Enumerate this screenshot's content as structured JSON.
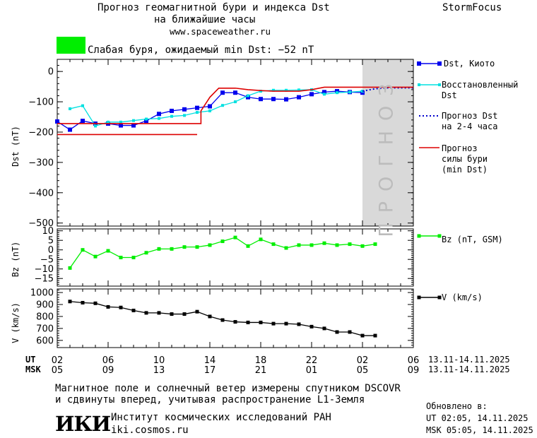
{
  "header": {
    "title_line1": "Прогноз геомагнитной бури и индекса Dst",
    "title_line2": "на ближайшие часы",
    "site": "www.spaceweather.ru",
    "brand": "StormFocus",
    "status_color": "#00ee00",
    "status_text": "Слабая буря, ожидаемый min Dst: −52 nT"
  },
  "forecast_label": "ПРОГНОЗ",
  "legend": {
    "dst_kyoto": "Dst, Киото",
    "restored_1": "Восстановленный",
    "restored_2": "Dst",
    "pred_1": "Прогноз Dst",
    "pred_2": "на 2-4 часа",
    "storm_1": "Прогноз",
    "storm_2": "силы бури",
    "storm_3": "(min Dst)",
    "bz": "Bz (nT, GSM)",
    "v": "V (km/s)"
  },
  "axes": {
    "dst_ylabel": "Dst (nT)",
    "bz_ylabel": "Bz (nT)",
    "v_ylabel": "V (km/s)",
    "ut_label": "UT",
    "msk_label": "MSK",
    "ut_ticks": [
      "02",
      "06",
      "10",
      "14",
      "18",
      "22",
      "02",
      "06"
    ],
    "msk_ticks": [
      "05",
      "09",
      "13",
      "17",
      "21",
      "01",
      "05",
      "09"
    ],
    "date_range_ut": "13.11-14.11.2025",
    "date_range_msk": "13.11-14.11.2025",
    "dst_ticks": [
      "0",
      "−100",
      "−200",
      "−300",
      "−400",
      "−500"
    ],
    "bz_ticks": [
      "10",
      "5",
      "0",
      "−5",
      "−10",
      "−15"
    ],
    "v_ticks": [
      "1000",
      "900",
      "800",
      "700",
      "600"
    ]
  },
  "footer": {
    "line1": "Магнитное поле и солнечный ветер измерены спутником DSCOVR",
    "line2": "и сдвинуты вперед, учитывая распространение L1-Земля",
    "updated_label": "Обновлено в:",
    "updated_ut": "UT  02:05, 14.11.2025",
    "updated_msk": "MSK 05:05, 14.11.2025",
    "logo_text": "ИКИ",
    "institute": "Институт космических исследований РАН",
    "institute_site": "iki.cosmos.ru"
  },
  "chart_data": [
    {
      "type": "line",
      "title": "Прогноз геомагнитной бури и индекса Dst",
      "ylabel": "Dst (nT)",
      "xlim": [
        2,
        30
      ],
      "ylim": [
        -510,
        40
      ],
      "forecast_start": 26,
      "series": [
        {
          "name": "Dst, Киото",
          "color": "#0000ee",
          "x": [
            2,
            3,
            4,
            5,
            6,
            7,
            8,
            9,
            10,
            11,
            12,
            13,
            14,
            15,
            16,
            17,
            18,
            19,
            20,
            21,
            22,
            23,
            24,
            25,
            26
          ],
          "y": [
            -165,
            -192,
            -163,
            -172,
            -172,
            -178,
            -178,
            -163,
            -140,
            -130,
            -125,
            -120,
            -115,
            -70,
            -70,
            -85,
            -91,
            -91,
            -92,
            -85,
            -75,
            -68,
            -65,
            -68,
            -70
          ]
        },
        {
          "name": "Восстановленный Dst",
          "color": "#00e0e0",
          "x": [
            3,
            4,
            5,
            6,
            7,
            8,
            9,
            10,
            11,
            12,
            13,
            14,
            15,
            16,
            17,
            18,
            19,
            20,
            21,
            22,
            23,
            24,
            25,
            26
          ],
          "y": [
            -123,
            -113,
            -180,
            -167,
            -167,
            -162,
            -157,
            -155,
            -148,
            -145,
            -135,
            -130,
            -112,
            -100,
            -80,
            -65,
            -62,
            -62,
            -61,
            -60,
            -75,
            -70,
            -68,
            -65
          ]
        },
        {
          "name": "Прогноз Dst на 2-4 часа",
          "color": "#0000cc",
          "x": [
            26,
            27,
            28,
            29,
            30
          ],
          "y": [
            -65,
            -57,
            -54,
            -54,
            -54
          ]
        },
        {
          "name": "Прогноз силы бури (min Dst)",
          "color": "#dd0000",
          "x": [
            2,
            13.3,
            13.3,
            14,
            14.7,
            15,
            16,
            17,
            18,
            19,
            20,
            21,
            22,
            23,
            24,
            25,
            26,
            27,
            28,
            29,
            30
          ],
          "y": [
            -172,
            -172,
            -130,
            -85,
            -55,
            -55,
            -55,
            -60,
            -63,
            -65,
            -65,
            -65,
            -60,
            -52,
            -52,
            -52,
            -52,
            -52,
            -52,
            -52,
            -52
          ]
        },
        {
          "name": "min Dst",
          "color": "#dd0000",
          "x": [
            2,
            13
          ],
          "y": [
            -208,
            -208
          ]
        }
      ]
    },
    {
      "type": "line",
      "ylabel": "Bz (nT)",
      "xlim": [
        2,
        30
      ],
      "ylim": [
        -19,
        11
      ],
      "series": [
        {
          "name": "Bz (nT, GSM)",
          "color": "#00ee00",
          "x": [
            3,
            4,
            5,
            6,
            7,
            8,
            9,
            10,
            11,
            12,
            13,
            14,
            15,
            16,
            17,
            18,
            19,
            20,
            21,
            22,
            23,
            24,
            25,
            26,
            27
          ],
          "y": [
            -9.5,
            0,
            -3.5,
            -0.5,
            -4,
            -4,
            -1.5,
            0.5,
            0.5,
            1.5,
            1.5,
            2.5,
            4.5,
            6.5,
            2,
            5.5,
            3,
            1,
            2.5,
            2.5,
            3.5,
            2.5,
            3,
            2,
            3
          ]
        }
      ]
    },
    {
      "type": "line",
      "ylabel": "V (km/s)",
      "xlim": [
        2,
        30
      ],
      "ylim": [
        540,
        1030
      ],
      "series": [
        {
          "name": "V (km/s)",
          "color": "#000000",
          "x": [
            3,
            4,
            5,
            6,
            7,
            8,
            9,
            10,
            11,
            12,
            13,
            14,
            15,
            16,
            17,
            18,
            19,
            20,
            21,
            22,
            23,
            24,
            25,
            26,
            27
          ],
          "y": [
            925,
            915,
            910,
            880,
            875,
            850,
            830,
            830,
            820,
            820,
            840,
            800,
            770,
            755,
            750,
            750,
            740,
            740,
            735,
            715,
            700,
            670,
            670,
            640,
            640
          ]
        }
      ]
    }
  ]
}
